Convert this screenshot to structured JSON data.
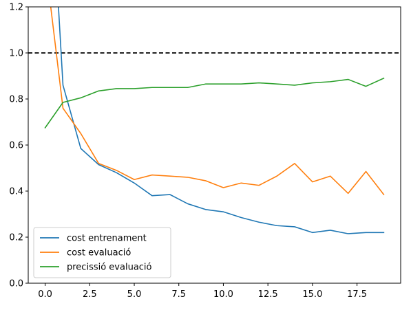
{
  "chart_data": {
    "type": "line",
    "title": "",
    "xlabel": "",
    "ylabel": "",
    "xlim": [
      -0.95,
      19.95
    ],
    "ylim": [
      0.0,
      1.2
    ],
    "x_ticks": [
      0.0,
      2.5,
      5.0,
      7.5,
      10.0,
      12.5,
      15.0,
      17.5
    ],
    "x_tick_labels": [
      "0.0",
      "2.5",
      "5.0",
      "7.5",
      "10.0",
      "12.5",
      "15.0",
      "17.5"
    ],
    "y_ticks": [
      0.0,
      0.2,
      0.4,
      0.6,
      0.8,
      1.0,
      1.2
    ],
    "y_tick_labels": [
      "0.0",
      "0.2",
      "0.4",
      "0.6",
      "0.8",
      "1.0",
      "1.2"
    ],
    "grid": false,
    "legend_position": "lower-left",
    "reference_line": {
      "y": 1.0,
      "style": "dashed",
      "color": "#000000"
    },
    "x": [
      0,
      1,
      2,
      3,
      4,
      5,
      6,
      7,
      8,
      9,
      10,
      11,
      12,
      13,
      14,
      15,
      16,
      17,
      18,
      19
    ],
    "series": [
      {
        "name": "cost entrenament",
        "color": "#1f77b4",
        "values": [
          2.2,
          0.86,
          0.585,
          0.515,
          0.48,
          0.435,
          0.38,
          0.385,
          0.345,
          0.32,
          0.31,
          0.285,
          0.265,
          0.25,
          0.245,
          0.22,
          0.23,
          0.215,
          0.22,
          0.22
        ]
      },
      {
        "name": "cost evaluació",
        "color": "#ff7f0e",
        "values": [
          1.4,
          0.76,
          0.65,
          0.52,
          0.49,
          0.45,
          0.47,
          0.465,
          0.46,
          0.445,
          0.415,
          0.435,
          0.425,
          0.465,
          0.52,
          0.44,
          0.465,
          0.39,
          0.485,
          0.385
        ]
      },
      {
        "name": "precissió evaluació",
        "color": "#2ca02c",
        "values": [
          0.675,
          0.785,
          0.805,
          0.835,
          0.845,
          0.845,
          0.85,
          0.85,
          0.85,
          0.865,
          0.865,
          0.865,
          0.87,
          0.865,
          0.86,
          0.87,
          0.875,
          0.885,
          0.855,
          0.89
        ]
      }
    ]
  }
}
